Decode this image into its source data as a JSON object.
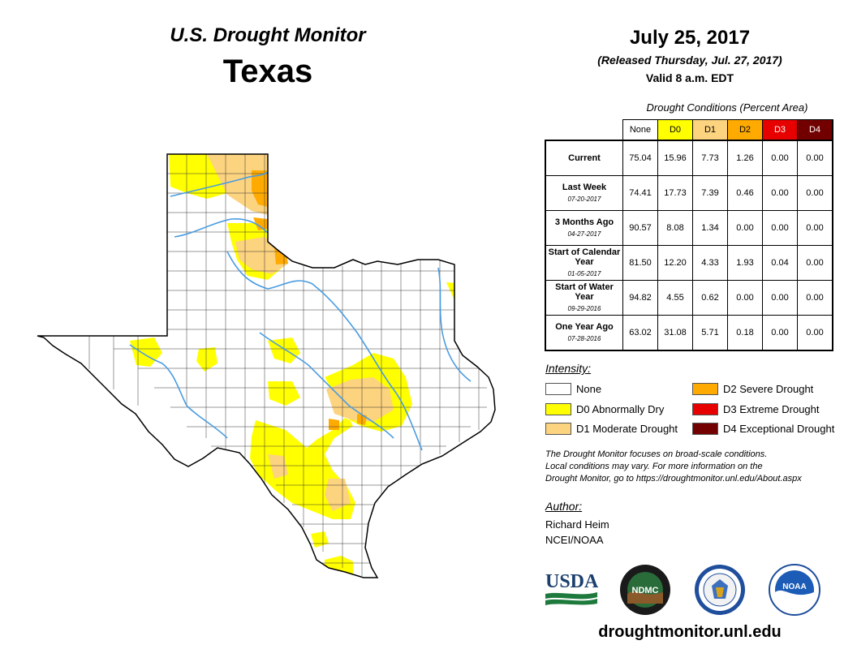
{
  "header": {
    "product_title": "U.S. Drought Monitor",
    "state": "Texas",
    "date": "July 25, 2017",
    "released": "(Released Thursday, Jul. 27, 2017)",
    "valid": "Valid 8 a.m. EDT"
  },
  "table": {
    "caption": "Drought Conditions (Percent Area)",
    "columns": [
      {
        "label": "None",
        "color": "#ffffff"
      },
      {
        "label": "D0",
        "color": "#ffff00"
      },
      {
        "label": "D1",
        "color": "#fcd37f"
      },
      {
        "label": "D2",
        "color": "#ffaa00"
      },
      {
        "label": "D3",
        "color": "#e60000"
      },
      {
        "label": "D4",
        "color": "#730000"
      }
    ],
    "rows": [
      {
        "label": "Current",
        "date": "",
        "values": [
          "75.04",
          "15.96",
          "7.73",
          "1.26",
          "0.00",
          "0.00"
        ]
      },
      {
        "label": "Last Week",
        "date": "07-20-2017",
        "values": [
          "74.41",
          "17.73",
          "7.39",
          "0.46",
          "0.00",
          "0.00"
        ]
      },
      {
        "label": "3 Months Ago",
        "date": "04-27-2017",
        "values": [
          "90.57",
          "8.08",
          "1.34",
          "0.00",
          "0.00",
          "0.00"
        ]
      },
      {
        "label": "Start of Calendar Year",
        "date": "01-05-2017",
        "values": [
          "81.50",
          "12.20",
          "4.33",
          "1.93",
          "0.04",
          "0.00"
        ]
      },
      {
        "label": "Start of Water Year",
        "date": "09-29-2016",
        "values": [
          "94.82",
          "4.55",
          "0.62",
          "0.00",
          "0.00",
          "0.00"
        ]
      },
      {
        "label": "One Year Ago",
        "date": "07-28-2016",
        "values": [
          "63.02",
          "31.08",
          "5.71",
          "0.18",
          "0.00",
          "0.00"
        ]
      }
    ]
  },
  "legend": {
    "heading": "Intensity:",
    "items": [
      {
        "label": "None",
        "color": "#ffffff"
      },
      {
        "label": "D0 Abnormally Dry",
        "color": "#ffff00"
      },
      {
        "label": "D1 Moderate Drought",
        "color": "#fcd37f"
      },
      {
        "label": "D2 Severe Drought",
        "color": "#ffaa00"
      },
      {
        "label": "D3 Extreme Drought",
        "color": "#e60000"
      },
      {
        "label": "D4 Exceptional Drought",
        "color": "#730000"
      }
    ]
  },
  "note": {
    "line1": "The Drought Monitor focuses on broad-scale conditions.",
    "line2": "Local conditions may vary. For more information on the",
    "line3": "Drought Monitor, go to https://droughtmonitor.unl.edu/About.aspx"
  },
  "author": {
    "heading": "Author:",
    "name": "Richard Heim",
    "org": "NCEI/NOAA"
  },
  "logos": {
    "usda": "USDA",
    "ndmc": "NDMC",
    "noaa": "NOAA"
  },
  "footer": {
    "site": "droughtmonitor.unl.edu"
  },
  "map": {
    "colors": {
      "river": "#4a9ce0",
      "border": "#000000",
      "county": "#333333"
    }
  }
}
